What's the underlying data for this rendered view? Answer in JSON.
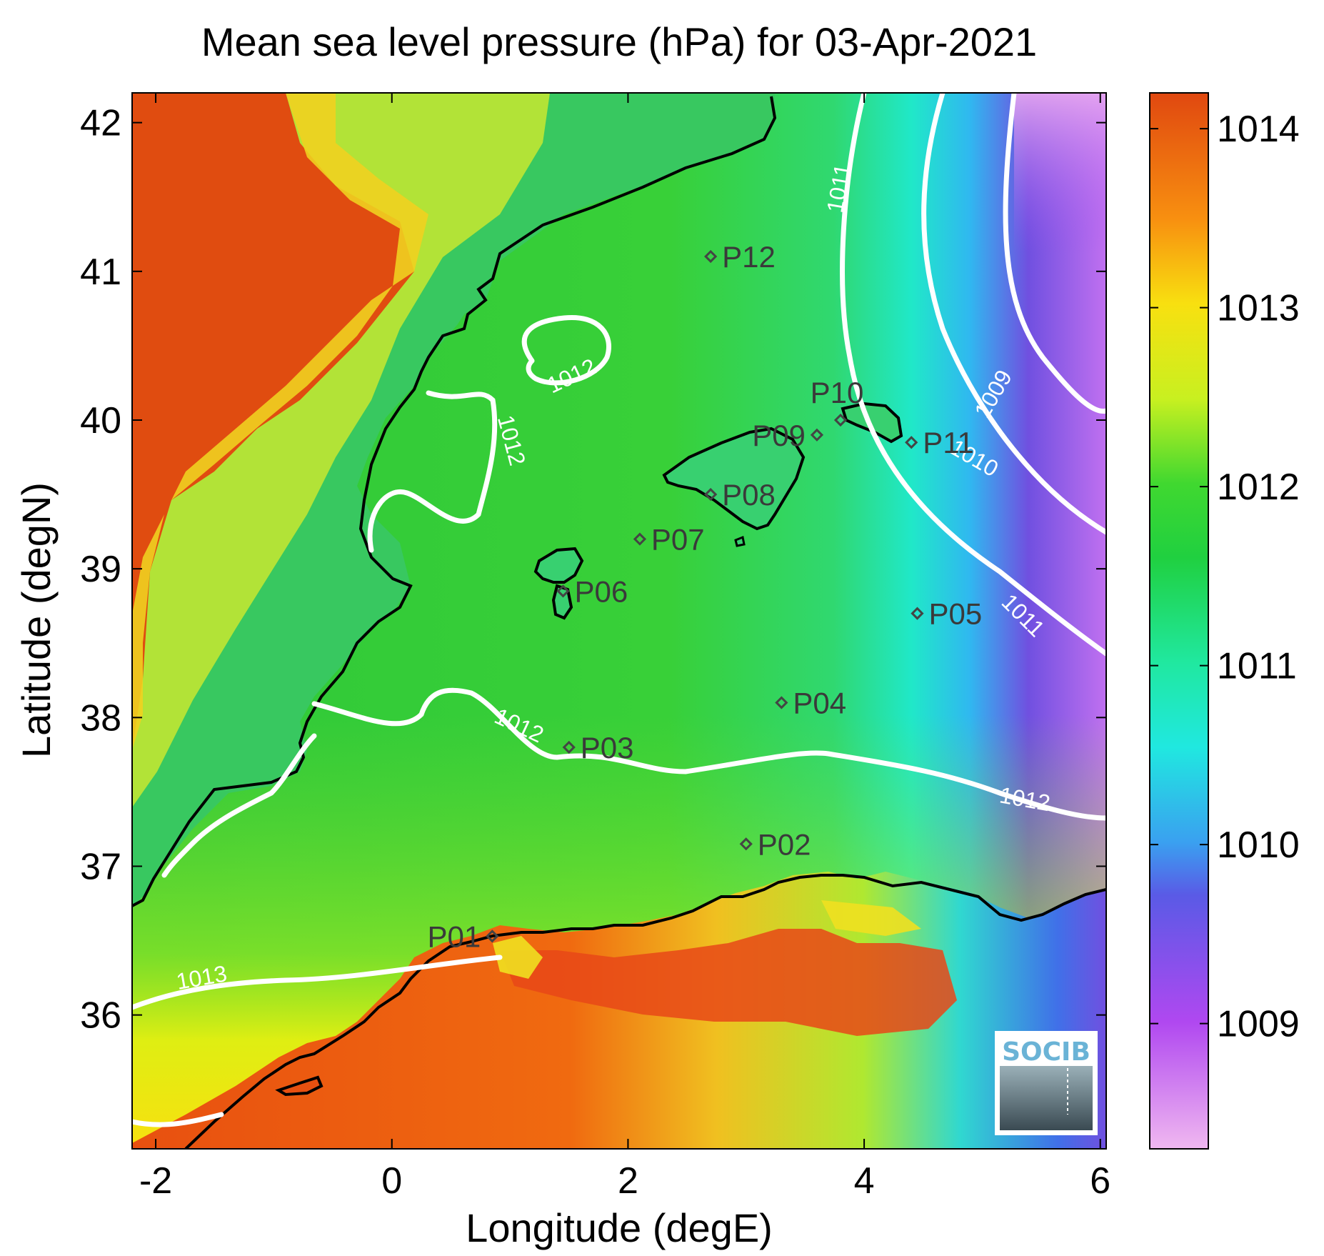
{
  "title": "Mean sea level pressure (hPa) for 03-Apr-2021",
  "chart_data": {
    "type": "heatmap",
    "title": "Mean sea level pressure (hPa) for 03-Apr-2021",
    "xlabel": "Longitude (degE)",
    "ylabel": "Latitude (degN)",
    "xlim": [
      -2.2,
      6.05
    ],
    "ylim": [
      35.1,
      42.2
    ],
    "x_ticks": [
      -2,
      0,
      2,
      4,
      6
    ],
    "y_ticks": [
      36,
      37,
      38,
      39,
      40,
      41,
      42
    ],
    "colorbar": {
      "range": [
        1008.3,
        1014.2
      ],
      "ticks": [
        1009,
        1010,
        1011,
        1012,
        1013,
        1014
      ],
      "colors": {
        "1008.3": "#f0b8f0",
        "1009": "#b048f0",
        "1009.7": "#5a5ae6",
        "1010": "#3aa0f0",
        "1010.5": "#20e8e0",
        "1011": "#20e8a0",
        "1011.6": "#20d040",
        "1012": "#40d830",
        "1012.5": "#c8f020",
        "1013": "#f8e010",
        "1013.5": "#f88010",
        "1014.2": "#e04810"
      }
    },
    "contour_labels": [
      {
        "value": "1009",
        "lon": 5.15,
        "lat": 40.15
      },
      {
        "value": "1010",
        "lon": 4.9,
        "lat": 39.7
      },
      {
        "value": "1011",
        "lon": 3.85,
        "lat": 41.55
      },
      {
        "value": "1011",
        "lon": 5.3,
        "lat": 38.65
      },
      {
        "value": "1012",
        "lon": 1.55,
        "lat": 40.25
      },
      {
        "value": "1012",
        "lon": 0.95,
        "lat": 39.85
      },
      {
        "value": "1012",
        "lon": 1.05,
        "lat": 37.9
      },
      {
        "value": "1012",
        "lon": 5.35,
        "lat": 37.4
      },
      {
        "value": "1013",
        "lon": -1.6,
        "lat": 36.2
      }
    ],
    "stations": [
      {
        "label": "P01",
        "lon": 0.85,
        "lat": 36.53
      },
      {
        "label": "P02",
        "lon": 3.0,
        "lat": 37.15
      },
      {
        "label": "P03",
        "lon": 1.5,
        "lat": 37.8
      },
      {
        "label": "P04",
        "lon": 3.3,
        "lat": 38.1
      },
      {
        "label": "P05",
        "lon": 4.45,
        "lat": 38.7
      },
      {
        "label": "P06",
        "lon": 1.45,
        "lat": 38.85
      },
      {
        "label": "P07",
        "lon": 2.1,
        "lat": 39.2
      },
      {
        "label": "P08",
        "lon": 2.7,
        "lat": 39.5
      },
      {
        "label": "P09",
        "lon": 3.6,
        "lat": 39.9
      },
      {
        "label": "P10",
        "lon": 3.8,
        "lat": 40.0
      },
      {
        "label": "P11",
        "lon": 4.4,
        "lat": 39.85
      },
      {
        "label": "P12",
        "lon": 2.7,
        "lat": 41.1
      }
    ]
  },
  "logo": {
    "text": "SOCIB"
  },
  "colors": {
    "coastline": "#000000",
    "contour": "#ffffff",
    "station_marker": "#444444"
  }
}
